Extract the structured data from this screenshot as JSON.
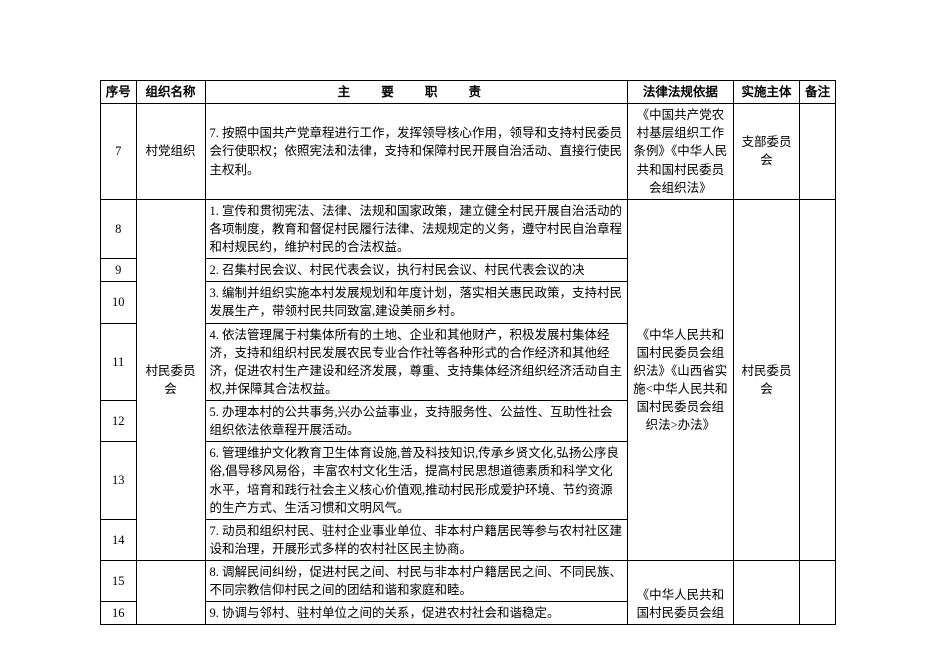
{
  "headers": {
    "seq": "序号",
    "org": "组织名称",
    "duty": "主  要  职  责",
    "law": "法律法规依据",
    "subj": "实施主体",
    "note": "备注"
  },
  "rows": [
    {
      "seq": "7",
      "org": "村党组织",
      "duty": "7. 按照中国共产党章程进行工作，发挥领导核心作用，领导和支持村民委员会行使职权；依照宪法和法律，支持和保障村民开展自治活动、直接行使民主权利。",
      "law": "《中国共产党农村基层组织工作条例》《中华人民共和国村民委员会组织法》",
      "subj": "支部委员会",
      "note": ""
    },
    {
      "seq": "8",
      "duty": "1. 宣传和贯彻宪法、法律、法规和国家政策，建立健全村民开展自治活动的各项制度，教育和督促村民履行法律、法规规定的义务，遵守村民自治章程和村规民约，维护村民的合法权益。"
    },
    {
      "seq": "9",
      "duty": "2. 召集村民会议、村民代表会议，执行村民会议、村民代表会议的决"
    },
    {
      "seq": "10",
      "duty": "3. 编制并组织实施本村发展规划和年度计划，落实相关惠民政策，支持村民发展生产，带领村民共同致富,建设美丽乡村。"
    },
    {
      "seq": "11",
      "duty": "4. 依法管理属于村集体所有的土地、企业和其他财产，积极发展村集体经济，支持和组织村民发展农民专业合作社等各种形式的合作经济和其他经济，促进农村生产建设和经济发展，尊重、支持集体经济组织经济活动自主权,并保障其合法权益。"
    },
    {
      "seq": "12",
      "duty": "5. 办理本村的公共事务,兴办公益事业，支持服务性、公益性、互助性社会组织依法依章程开展活动。"
    },
    {
      "seq": "13",
      "duty": "6. 管理维护文化教育卫生体育设施,普及科技知识,传承乡贤文化,弘扬公序良俗,倡导移风易俗，丰富农村文化生活，提高村民思想道德素质和科学文化水平，培育和践行社会主义核心价值观,推动村民形成爱护环境、节约资源的生产方式、生活习惯和文明风气。"
    },
    {
      "seq": "14",
      "duty": "7. 动员和组织村民、驻村企业事业单位、非本村户籍居民等参与农村社区建设和治理，开展形式多样的农村社区民主协商。"
    },
    {
      "seq": "15",
      "duty": "8. 调解民间纠纷，促进村民之间、村民与非本村户籍居民之间、不同民族、不同宗教信仰村民之间的团结和谐和家庭和睦。"
    },
    {
      "seq": "16",
      "duty": "9. 协调与邻村、驻村单位之间的关系，促进农村社会和谐稳定。"
    }
  ],
  "merged": {
    "org2": "村民委员会",
    "law2": "《中华人民共和国村民委员会组织法》《山西省实施<中华人民共和国村民委员会组织法>办法》",
    "law3": "《中华人民共和国村民委员会组",
    "subj2": "村民委员会"
  },
  "styling": {
    "background_color": "#ffffff",
    "border_color": "#000000",
    "font_family": "SimSun",
    "font_size": 12.5,
    "line_height": 1.45,
    "padding_outer": "80px 100px 0 100px"
  }
}
